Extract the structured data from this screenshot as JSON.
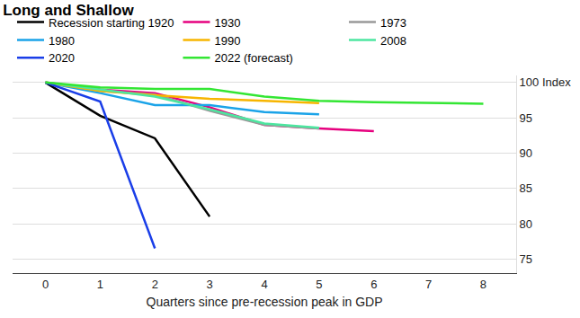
{
  "chart_data": {
    "type": "line",
    "title": "Long and Shallow",
    "x_label": "Quarters since pre-recession peak in GDP",
    "xlim": [
      -0.6,
      8.6
    ],
    "xticks": [
      0,
      1,
      2,
      3,
      4,
      5,
      6,
      7,
      8
    ],
    "ylim": [
      73,
      101
    ],
    "yticks": [
      75,
      80,
      85,
      90,
      95,
      {
        "value": 100,
        "label": "100 Index"
      }
    ],
    "grid": true,
    "legend": "top",
    "series": [
      {
        "name": "Recession starting 1920",
        "color": "#000000",
        "x": [
          0,
          1,
          2,
          3
        ],
        "values": [
          100,
          95.3,
          92.1,
          81
        ]
      },
      {
        "name": "1930",
        "color": "#e6007e",
        "x": [
          0,
          1,
          2,
          3,
          4,
          5,
          6
        ],
        "values": [
          100,
          99,
          98.5,
          96.5,
          94,
          93.5,
          93.1
        ]
      },
      {
        "name": "1973",
        "color": "#999999",
        "x": [
          0,
          1,
          2,
          3,
          4,
          5
        ],
        "values": [
          100,
          98.8,
          98.3,
          96,
          94,
          93.5
        ]
      },
      {
        "name": "1980",
        "color": "#1aa3e8",
        "x": [
          0,
          1,
          2,
          3,
          4,
          5
        ],
        "values": [
          100,
          98.5,
          96.8,
          96.8,
          95.8,
          95.5
        ]
      },
      {
        "name": "1990",
        "color": "#f7b500",
        "x": [
          0,
          1,
          2,
          3,
          4,
          5
        ],
        "values": [
          100,
          98.8,
          98.2,
          97.7,
          97.4,
          97.1
        ]
      },
      {
        "name": "2008",
        "color": "#4de6a0",
        "x": [
          0,
          1,
          2,
          3,
          4,
          5
        ],
        "values": [
          100,
          99,
          98,
          96.2,
          94.2,
          93.6
        ]
      },
      {
        "name": "2020",
        "color": "#1a3ee8",
        "x": [
          0,
          1,
          2
        ],
        "values": [
          100,
          97.3,
          76.5
        ]
      },
      {
        "name": "2022 (forecast)",
        "color": "#33e633",
        "x": [
          0,
          1,
          2,
          3,
          4,
          5,
          6,
          7,
          8
        ],
        "values": [
          100,
          99.3,
          99.1,
          99.1,
          98,
          97.4,
          97.2,
          97.1,
          97
        ]
      }
    ]
  }
}
